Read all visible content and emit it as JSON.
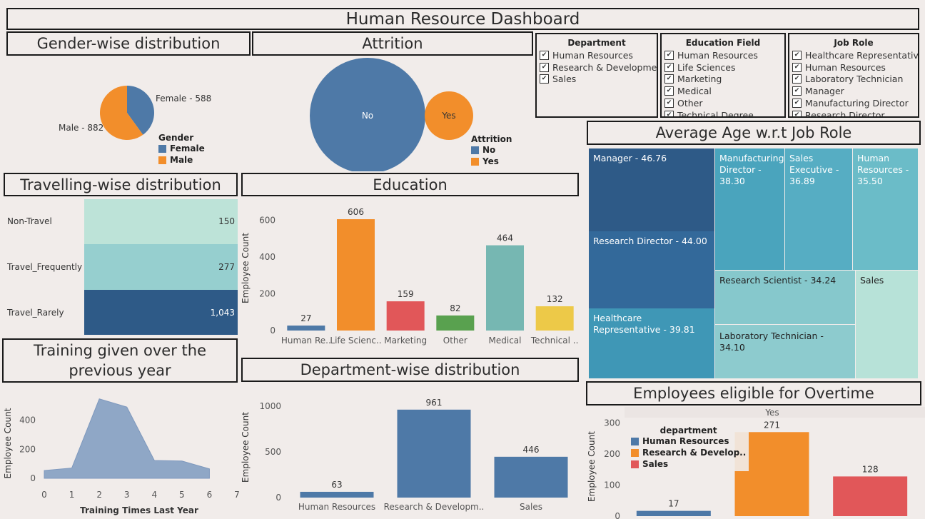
{
  "header": {
    "title": "Human Resource Dashboard"
  },
  "colors": {
    "blue": "#4e79a7",
    "orange": "#f28e2b",
    "red": "#e15759",
    "teal": "#76b7b2",
    "yellow": "#edc948"
  },
  "gender": {
    "title": "Gender-wise distribution",
    "legend_title": "Gender",
    "labels": [
      "Female - 588",
      "Male - 882"
    ],
    "legend": [
      "Female",
      "Male"
    ],
    "chart_data": {
      "type": "pie",
      "categories": [
        "Female",
        "Male"
      ],
      "values": [
        588,
        882
      ]
    }
  },
  "attrition": {
    "title": "Attrition",
    "legend_title": "Attrition",
    "legend": [
      "No",
      "Yes"
    ],
    "circle_labels": [
      "No",
      "Yes"
    ],
    "chart_data": {
      "type": "bubble",
      "categories": [
        "No",
        "Yes"
      ]
    }
  },
  "filters": {
    "department": {
      "title": "Department",
      "items": [
        "Human Resources",
        "Research & Development",
        "Sales"
      ]
    },
    "education_field": {
      "title": "Education Field",
      "items": [
        "Human Resources",
        "Life Sciences",
        "Marketing",
        "Medical",
        "Other",
        "Technical Degree"
      ]
    },
    "job_role": {
      "title": "Job Role",
      "items": [
        "Healthcare Representative",
        "Human Resources",
        "Laboratory Technician",
        "Manager",
        "Manufacturing Director",
        "Research Director"
      ]
    },
    "check": "✔"
  },
  "travel": {
    "title": "Travelling-wise distribution",
    "rows": [
      {
        "label": "Non-Travel",
        "value": "150",
        "color": "#bde3d8"
      },
      {
        "label": "Travel_Frequently",
        "value": "277",
        "color": "#96cfcf"
      },
      {
        "label": "Travel_Rarely",
        "value": "1,043",
        "color": "#2e5a87"
      }
    ]
  },
  "education": {
    "title": "Education",
    "ylabel": "Employee Count",
    "yticks": [
      "0",
      "200",
      "400",
      "600"
    ],
    "chart_data": {
      "type": "bar",
      "categories": [
        "Human Re..",
        "Life Scienc..",
        "Marketing",
        "Other",
        "Medical",
        "Technical .."
      ],
      "values": [
        27,
        606,
        159,
        82,
        464,
        132
      ],
      "colors": [
        "#4e79a7",
        "#f28e2b",
        "#e15759",
        "#59a14f",
        "#76b7b2",
        "#edc948"
      ],
      "ylim": [
        0,
        680
      ]
    }
  },
  "avg_age": {
    "title": "Average Age w.r.t Job Role",
    "cells": [
      {
        "label": "Manager - 46.76",
        "color": "#2e5a87"
      },
      {
        "label": "Research Director - 44.00",
        "color": "#33699a"
      },
      {
        "label": "Healthcare Representative - 39.81",
        "color": "#3f97b6"
      },
      {
        "label": "Manufacturing Director - 38.30",
        "color": "#4aa4bd"
      },
      {
        "label": "Sales Executive - 36.89",
        "color": "#56adc3"
      },
      {
        "label": "Human Resources - 35.50",
        "color": "#6bbcc8"
      },
      {
        "label": "Research Scientist - 34.24",
        "color": "#86c8cc"
      },
      {
        "label": "Laboratory Technician - 34.10",
        "color": "#8dcbce"
      },
      {
        "label": "Sales",
        "color": "#b7e2d8"
      }
    ]
  },
  "training": {
    "title": "Training given over the previous year",
    "ylabel": "Employee Count",
    "xlabel": "Training Times Last Year",
    "yticks": [
      "0",
      "200",
      "400"
    ],
    "xticks": [
      "0",
      "1",
      "2",
      "3",
      "4",
      "5",
      "6",
      "7"
    ],
    "chart_data": {
      "type": "area",
      "x": [
        0,
        1,
        2,
        3,
        4,
        5,
        6
      ],
      "values": [
        54,
        71,
        547,
        491,
        123,
        119,
        65
      ],
      "xlim": [
        0,
        7
      ],
      "ylim": [
        0,
        600
      ]
    }
  },
  "department": {
    "title": "Department-wise distribution",
    "ylabel": "Employee Count",
    "yticks": [
      "0",
      "500",
      "1000"
    ],
    "chart_data": {
      "type": "bar",
      "categories": [
        "Human Resources",
        "Research & Developm..",
        "Sales"
      ],
      "values": [
        63,
        961,
        446
      ],
      "ylim": [
        0,
        1100
      ]
    }
  },
  "overtime": {
    "title": "Employees eligible for Overtime",
    "column_header": "Yes",
    "ylabel": "Employee Count",
    "yticks": [
      "0",
      "100",
      "200",
      "300"
    ],
    "legend_title": "department",
    "legend": [
      "Human Resources",
      "Research & Develop..",
      "Sales"
    ],
    "chart_data": {
      "type": "bar",
      "categories": [
        "Human Resources",
        "Research & Development",
        "Sales"
      ],
      "values": [
        17,
        271,
        128
      ],
      "ylim": [
        0,
        320
      ]
    }
  }
}
